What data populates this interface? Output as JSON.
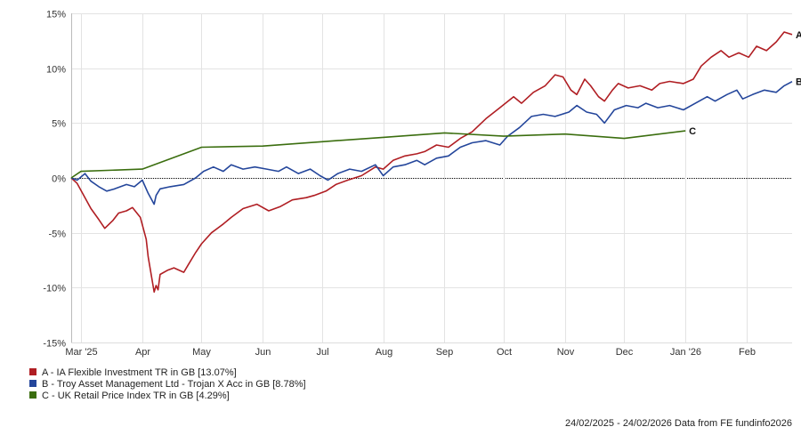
{
  "chart_data": {
    "type": "line",
    "title": "",
    "xlabel": "",
    "ylabel": "",
    "x_range": [
      "2025-02-24",
      "2026-02-24"
    ],
    "ylim": [
      -15,
      15
    ],
    "y_ticks": [
      15,
      10,
      5,
      0,
      -5,
      -10,
      -15
    ],
    "y_tick_labels": [
      "15%",
      "10%",
      "5%",
      "0%",
      "-5%",
      "-10%",
      "-15%"
    ],
    "x_ticks": [
      {
        "label": "Mar '25",
        "date": "2025-03-01"
      },
      {
        "label": "Apr",
        "date": "2025-04-01"
      },
      {
        "label": "May",
        "date": "2025-05-01"
      },
      {
        "label": "Jun",
        "date": "2025-06-01"
      },
      {
        "label": "Jul",
        "date": "2025-07-01"
      },
      {
        "label": "Aug",
        "date": "2025-08-01"
      },
      {
        "label": "Sep",
        "date": "2025-09-01"
      },
      {
        "label": "Oct",
        "date": "2025-10-01"
      },
      {
        "label": "Nov",
        "date": "2025-11-01"
      },
      {
        "label": "Dec",
        "date": "2025-12-01"
      },
      {
        "label": "Jan '26",
        "date": "2026-01-01"
      },
      {
        "label": "Feb",
        "date": "2026-02-01"
      }
    ],
    "grid": true,
    "legend_position": "bottom-left",
    "series": [
      {
        "name": "A - IA Flexible Investment TR in GB [13.07%]",
        "end_label": "A",
        "color": "#b01e23",
        "points": [
          [
            "2025-02-24",
            0
          ],
          [
            "2025-02-27",
            -0.5
          ],
          [
            "2025-03-03",
            -1.8
          ],
          [
            "2025-03-06",
            -2.8
          ],
          [
            "2025-03-10",
            -3.8
          ],
          [
            "2025-03-13",
            -4.6
          ],
          [
            "2025-03-17",
            -3.9
          ],
          [
            "2025-03-20",
            -3.2
          ],
          [
            "2025-03-24",
            -3.0
          ],
          [
            "2025-03-27",
            -2.7
          ],
          [
            "2025-03-31",
            -3.6
          ],
          [
            "2025-04-03",
            -5.6
          ],
          [
            "2025-04-04",
            -7.2
          ],
          [
            "2025-04-07",
            -10.4
          ],
          [
            "2025-04-08",
            -9.8
          ],
          [
            "2025-04-09",
            -10.2
          ],
          [
            "2025-04-10",
            -8.8
          ],
          [
            "2025-04-14",
            -8.4
          ],
          [
            "2025-04-17",
            -8.2
          ],
          [
            "2025-04-22",
            -8.6
          ],
          [
            "2025-04-24",
            -8.0
          ],
          [
            "2025-04-28",
            -6.8
          ],
          [
            "2025-05-01",
            -6.0
          ],
          [
            "2025-05-06",
            -5.0
          ],
          [
            "2025-05-12",
            -4.2
          ],
          [
            "2025-05-16",
            -3.6
          ],
          [
            "2025-05-22",
            -2.8
          ],
          [
            "2025-05-29",
            -2.4
          ],
          [
            "2025-06-04",
            -3.0
          ],
          [
            "2025-06-10",
            -2.6
          ],
          [
            "2025-06-16",
            -2.0
          ],
          [
            "2025-06-23",
            -1.8
          ],
          [
            "2025-06-27",
            -1.6
          ],
          [
            "2025-07-03",
            -1.2
          ],
          [
            "2025-07-08",
            -0.6
          ],
          [
            "2025-07-14",
            -0.2
          ],
          [
            "2025-07-21",
            0.2
          ],
          [
            "2025-07-28",
            1.0
          ],
          [
            "2025-08-01",
            0.8
          ],
          [
            "2025-08-06",
            1.6
          ],
          [
            "2025-08-12",
            2.0
          ],
          [
            "2025-08-18",
            2.2
          ],
          [
            "2025-08-22",
            2.4
          ],
          [
            "2025-08-28",
            3.0
          ],
          [
            "2025-09-03",
            2.8
          ],
          [
            "2025-09-09",
            3.6
          ],
          [
            "2025-09-15",
            4.2
          ],
          [
            "2025-09-22",
            5.4
          ],
          [
            "2025-09-29",
            6.4
          ],
          [
            "2025-10-06",
            7.4
          ],
          [
            "2025-10-10",
            6.8
          ],
          [
            "2025-10-16",
            7.8
          ],
          [
            "2025-10-22",
            8.4
          ],
          [
            "2025-10-27",
            9.4
          ],
          [
            "2025-10-31",
            9.2
          ],
          [
            "2025-11-04",
            8.0
          ],
          [
            "2025-11-07",
            7.6
          ],
          [
            "2025-11-11",
            9.0
          ],
          [
            "2025-11-14",
            8.4
          ],
          [
            "2025-11-18",
            7.4
          ],
          [
            "2025-11-21",
            7.0
          ],
          [
            "2025-11-25",
            8.0
          ],
          [
            "2025-11-28",
            8.6
          ],
          [
            "2025-12-03",
            8.2
          ],
          [
            "2025-12-09",
            8.4
          ],
          [
            "2025-12-15",
            8.0
          ],
          [
            "2025-12-19",
            8.6
          ],
          [
            "2025-12-24",
            8.8
          ],
          [
            "2025-12-31",
            8.6
          ],
          [
            "2026-01-05",
            9.0
          ],
          [
            "2026-01-09",
            10.2
          ],
          [
            "2026-01-14",
            11.0
          ],
          [
            "2026-01-19",
            11.6
          ],
          [
            "2026-01-23",
            11.0
          ],
          [
            "2026-01-28",
            11.4
          ],
          [
            "2026-02-02",
            11.0
          ],
          [
            "2026-02-06",
            12.0
          ],
          [
            "2026-02-11",
            11.6
          ],
          [
            "2026-02-16",
            12.4
          ],
          [
            "2026-02-20",
            13.3
          ],
          [
            "2026-02-24",
            13.07
          ]
        ]
      },
      {
        "name": "B - Troy Asset Management Ltd - Trojan X Acc in GB [8.78%]",
        "end_label": "B",
        "color": "#24469b",
        "points": [
          [
            "2025-02-24",
            0
          ],
          [
            "2025-02-27",
            -0.2
          ],
          [
            "2025-03-03",
            0.4
          ],
          [
            "2025-03-06",
            -0.3
          ],
          [
            "2025-03-10",
            -0.8
          ],
          [
            "2025-03-14",
            -1.2
          ],
          [
            "2025-03-18",
            -1.0
          ],
          [
            "2025-03-24",
            -0.6
          ],
          [
            "2025-03-28",
            -0.8
          ],
          [
            "2025-04-01",
            -0.2
          ],
          [
            "2025-04-04",
            -1.4
          ],
          [
            "2025-04-07",
            -2.4
          ],
          [
            "2025-04-08",
            -1.6
          ],
          [
            "2025-04-10",
            -1.0
          ],
          [
            "2025-04-15",
            -0.8
          ],
          [
            "2025-04-22",
            -0.6
          ],
          [
            "2025-04-28",
            0
          ],
          [
            "2025-05-02",
            0.6
          ],
          [
            "2025-05-07",
            1.0
          ],
          [
            "2025-05-12",
            0.6
          ],
          [
            "2025-05-16",
            1.2
          ],
          [
            "2025-05-22",
            0.8
          ],
          [
            "2025-05-28",
            1.0
          ],
          [
            "2025-06-03",
            0.8
          ],
          [
            "2025-06-09",
            0.6
          ],
          [
            "2025-06-13",
            1.0
          ],
          [
            "2025-06-19",
            0.4
          ],
          [
            "2025-06-25",
            0.8
          ],
          [
            "2025-06-30",
            0.2
          ],
          [
            "2025-07-04",
            -0.2
          ],
          [
            "2025-07-09",
            0.4
          ],
          [
            "2025-07-15",
            0.8
          ],
          [
            "2025-07-21",
            0.6
          ],
          [
            "2025-07-28",
            1.2
          ],
          [
            "2025-08-01",
            0.2
          ],
          [
            "2025-08-06",
            1.0
          ],
          [
            "2025-08-12",
            1.2
          ],
          [
            "2025-08-18",
            1.6
          ],
          [
            "2025-08-22",
            1.2
          ],
          [
            "2025-08-28",
            1.8
          ],
          [
            "2025-09-03",
            2.0
          ],
          [
            "2025-09-09",
            2.8
          ],
          [
            "2025-09-15",
            3.2
          ],
          [
            "2025-09-22",
            3.4
          ],
          [
            "2025-09-29",
            3.0
          ],
          [
            "2025-10-03",
            3.8
          ],
          [
            "2025-10-09",
            4.6
          ],
          [
            "2025-10-15",
            5.6
          ],
          [
            "2025-10-21",
            5.8
          ],
          [
            "2025-10-27",
            5.6
          ],
          [
            "2025-11-03",
            6.0
          ],
          [
            "2025-11-07",
            6.6
          ],
          [
            "2025-11-12",
            6.0
          ],
          [
            "2025-11-17",
            5.8
          ],
          [
            "2025-11-21",
            5.0
          ],
          [
            "2025-11-26",
            6.2
          ],
          [
            "2025-12-02",
            6.6
          ],
          [
            "2025-12-08",
            6.4
          ],
          [
            "2025-12-12",
            6.8
          ],
          [
            "2025-12-18",
            6.4
          ],
          [
            "2025-12-24",
            6.6
          ],
          [
            "2025-12-31",
            6.2
          ],
          [
            "2026-01-06",
            6.8
          ],
          [
            "2026-01-12",
            7.4
          ],
          [
            "2026-01-16",
            7.0
          ],
          [
            "2026-01-22",
            7.6
          ],
          [
            "2026-01-27",
            8.0
          ],
          [
            "2026-01-30",
            7.2
          ],
          [
            "2026-02-04",
            7.6
          ],
          [
            "2026-02-10",
            8.0
          ],
          [
            "2026-02-16",
            7.8
          ],
          [
            "2026-02-20",
            8.4
          ],
          [
            "2026-02-24",
            8.78
          ]
        ]
      },
      {
        "name": "C - UK Retail Price Index TR in GB [4.29%]",
        "end_label": "C",
        "color": "#3b6e0f",
        "points": [
          [
            "2025-02-24",
            0
          ],
          [
            "2025-03-01",
            0.6
          ],
          [
            "2025-04-01",
            0.8
          ],
          [
            "2025-05-01",
            2.8
          ],
          [
            "2025-06-01",
            2.9
          ],
          [
            "2025-07-01",
            3.3
          ],
          [
            "2025-08-01",
            3.7
          ],
          [
            "2025-09-01",
            4.1
          ],
          [
            "2025-10-01",
            3.8
          ],
          [
            "2025-11-01",
            4.0
          ],
          [
            "2025-12-01",
            3.6
          ],
          [
            "2026-01-01",
            4.29
          ]
        ]
      }
    ],
    "footer": "24/02/2025 - 24/02/2026 Data from FE fundinfo2026"
  }
}
